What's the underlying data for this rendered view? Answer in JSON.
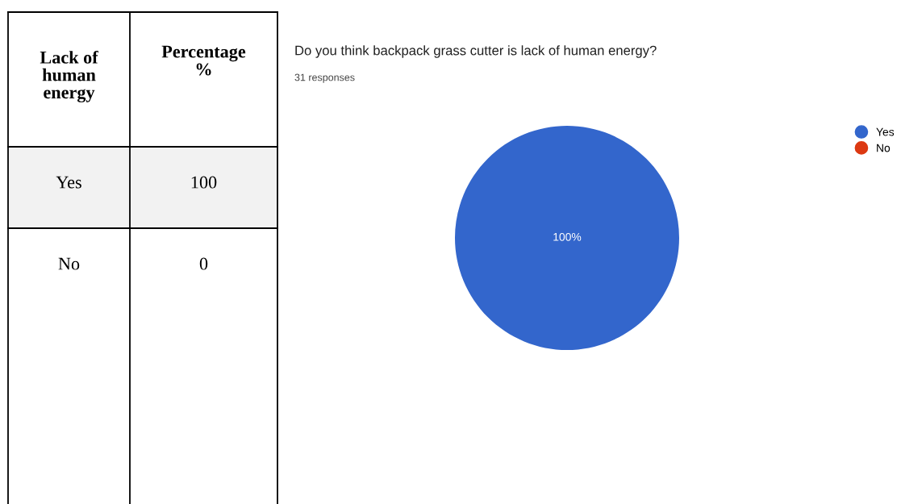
{
  "chart_data": [
    {
      "type": "other",
      "xlabel": "Lack of human energy",
      "ylabel": "Percentage %",
      "categories": [
        "Yes",
        "No"
      ],
      "values": [
        100,
        0
      ],
      "data_labels": true
    },
    {
      "type": "pie",
      "title": "Do you think backpack grass cutter is lack of human energy?",
      "subtitle": "31 responses",
      "categories": [
        "Yes",
        "No"
      ],
      "values": [
        100,
        0
      ],
      "colors": [
        "#3366cc",
        "#dc3912"
      ],
      "value_labels": [
        "100%",
        null
      ],
      "legend": "top right"
    }
  ]
}
